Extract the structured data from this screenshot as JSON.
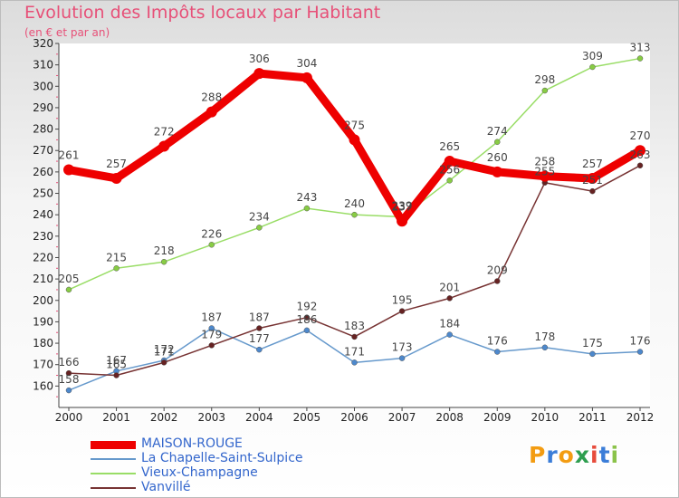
{
  "header": {
    "title": "Evolution des Impôts locaux par Habitant",
    "subtitle": "(en € et par an)"
  },
  "logo": {
    "text": "Proxiti",
    "colors": [
      "#f39c12",
      "#3b7dd8",
      "#f39c12",
      "#2e9e4f",
      "#e74c3c",
      "#3b7dd8",
      "#8bc34a"
    ]
  },
  "chart_data": {
    "type": "line",
    "title": "Evolution des Impôts locaux par Habitant",
    "subtitle": "(en € et par an)",
    "xlabel": "",
    "ylabel": "",
    "x": [
      "2000",
      "2001",
      "2002",
      "2003",
      "2004",
      "2005",
      "2006",
      "2007",
      "2008",
      "2009",
      "2010",
      "2011",
      "2012"
    ],
    "ylim": [
      150,
      320
    ],
    "yticks": [
      160,
      170,
      180,
      190,
      200,
      210,
      220,
      230,
      240,
      250,
      260,
      270,
      280,
      290,
      300,
      310,
      320
    ],
    "grid": false,
    "legend_position": "bottom-left",
    "series": [
      {
        "name": "Vieux-Champagne",
        "color": "#99dd66",
        "marker": "#88cc44",
        "values": [
          205,
          215,
          218,
          226,
          234,
          243,
          240,
          239,
          256,
          274,
          298,
          309,
          313
        ],
        "labels": [
          "205",
          "215",
          "218",
          "226",
          "234",
          "243",
          "240",
          "239",
          "256",
          "274",
          "298",
          "309",
          "313"
        ]
      },
      {
        "name": "La Chapelle-Saint-Sulpice",
        "color": "#6699cc",
        "marker": "#4d88cc",
        "values": [
          158,
          167,
          172,
          187,
          177,
          186,
          171,
          173,
          184,
          176,
          178,
          175,
          176
        ],
        "labels": [
          "158",
          "167",
          "172",
          "187",
          "177",
          "186",
          "171",
          "173",
          "184",
          "176",
          "178",
          "175",
          "176"
        ]
      },
      {
        "name": "Vanvillé",
        "color": "#773333",
        "marker": "#662222",
        "values": [
          166,
          165,
          171,
          179,
          187,
          192,
          183,
          195,
          201,
          209,
          255,
          251,
          263
        ],
        "labels": [
          "166",
          "165",
          "171",
          "179",
          "187",
          "192",
          "183",
          "195",
          "201",
          "209",
          "255",
          "251",
          "263"
        ]
      },
      {
        "name": "MAISON-ROUGE",
        "color": "#ee0000",
        "marker": "#ee0000",
        "values": [
          261,
          257,
          272,
          288,
          306,
          304,
          275,
          237,
          265,
          260,
          258,
          257,
          270
        ],
        "labels": [
          "261",
          "257",
          "272",
          "288",
          "306",
          "304",
          "275",
          "237",
          "265",
          "260",
          "258",
          "257",
          "270"
        ]
      }
    ],
    "legend": [
      {
        "name": "MAISON-ROUGE",
        "color": "#ee0000"
      },
      {
        "name": "La Chapelle-Saint-Sulpice",
        "color": "#6699cc"
      },
      {
        "name": "Vieux-Champagne",
        "color": "#99dd66"
      },
      {
        "name": "Vanvillé",
        "color": "#773333"
      }
    ]
  }
}
